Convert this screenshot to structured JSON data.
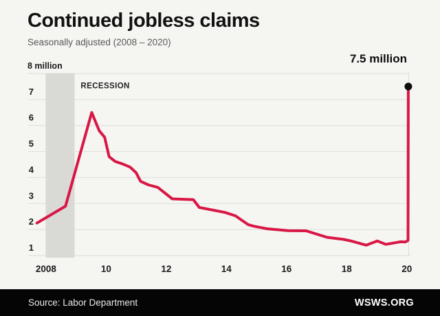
{
  "header": {
    "title": "Continued jobless claims",
    "subtitle": "Seasonally adjusted (2008 – 2020)"
  },
  "annotation": {
    "endpoint_label": "7.5 million"
  },
  "footer": {
    "source": "Source: Labor Department",
    "brand": "WSWS.ORG"
  },
  "colors": {
    "background": "#f5f5f2",
    "line": "#d81745",
    "dot": "#0d0d0d",
    "recession_band": "#d9d9d6",
    "grid": "#dcdcd9",
    "axis_text": "#1a1a1a",
    "recession_text": "#222222",
    "footer_bg": "#050505"
  },
  "chart_data": {
    "type": "line",
    "title": "Continued jobless claims",
    "subtitle": "Seasonally adjusted (2008 – 2020)",
    "unit": "millions of claims",
    "xlim": [
      2007.66,
      2020.12
    ],
    "ylim": [
      1,
      8
    ],
    "grid": "horizontal",
    "legend_position": "none",
    "y_ticks": [
      {
        "value": 8,
        "label": "8 million"
      },
      {
        "value": 7,
        "label": "7"
      },
      {
        "value": 6,
        "label": "6"
      },
      {
        "value": 5,
        "label": "5"
      },
      {
        "value": 4,
        "label": "4"
      },
      {
        "value": 3,
        "label": "3"
      },
      {
        "value": 2,
        "label": "2"
      },
      {
        "value": 1,
        "label": "1"
      }
    ],
    "x_ticks": [
      {
        "year": 2008,
        "label": "2008"
      },
      {
        "year": 2010,
        "label": "10"
      },
      {
        "year": 2012,
        "label": "12"
      },
      {
        "year": 2014,
        "label": "14"
      },
      {
        "year": 2016,
        "label": "16"
      },
      {
        "year": 2018,
        "label": "18"
      },
      {
        "year": 2020,
        "label": "20"
      }
    ],
    "recession_band": {
      "label": "RECESSION",
      "x_start": 2007.99,
      "x_end": 2008.95
    },
    "series": [
      {
        "name": "Continued jobless claims (seasonally adjusted, millions)",
        "points": [
          [
            2007.7,
            2.25
          ],
          [
            2008.65,
            2.9
          ],
          [
            2009.52,
            6.5
          ],
          [
            2009.77,
            5.8
          ],
          [
            2009.95,
            5.55
          ],
          [
            2010.1,
            4.8
          ],
          [
            2010.3,
            4.62
          ],
          [
            2010.55,
            4.52
          ],
          [
            2010.8,
            4.4
          ],
          [
            2011.0,
            4.18
          ],
          [
            2011.1,
            3.95
          ],
          [
            2011.15,
            3.85
          ],
          [
            2011.4,
            3.72
          ],
          [
            2011.72,
            3.62
          ],
          [
            2012.2,
            3.18
          ],
          [
            2012.9,
            3.15
          ],
          [
            2013.1,
            2.85
          ],
          [
            2013.95,
            2.66
          ],
          [
            2014.3,
            2.53
          ],
          [
            2014.72,
            2.19
          ],
          [
            2014.9,
            2.13
          ],
          [
            2015.35,
            2.03
          ],
          [
            2016.05,
            1.96
          ],
          [
            2016.65,
            1.95
          ],
          [
            2017.35,
            1.7
          ],
          [
            2017.9,
            1.62
          ],
          [
            2018.15,
            1.56
          ],
          [
            2018.65,
            1.4
          ],
          [
            2019.02,
            1.56
          ],
          [
            2019.3,
            1.43
          ],
          [
            2019.5,
            1.47
          ],
          [
            2019.8,
            1.53
          ],
          [
            2019.95,
            1.52
          ],
          [
            2020.04,
            1.58
          ],
          [
            2020.05,
            7.5
          ]
        ]
      }
    ],
    "endpoint": {
      "x": 2020.05,
      "value": 7.5,
      "label": "7.5 million"
    }
  }
}
